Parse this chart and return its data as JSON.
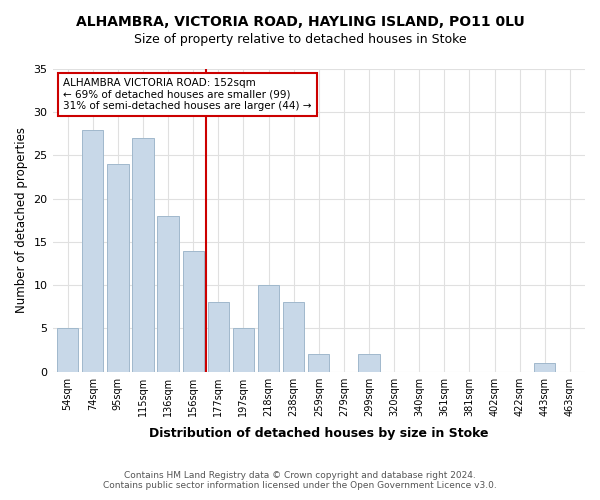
{
  "title": "ALHAMBRA, VICTORIA ROAD, HAYLING ISLAND, PO11 0LU",
  "subtitle": "Size of property relative to detached houses in Stoke",
  "xlabel": "Distribution of detached houses by size in Stoke",
  "ylabel": "Number of detached properties",
  "bar_color": "#c8d8e8",
  "bar_edge_color": "#a0b8cc",
  "categories": [
    "54sqm",
    "74sqm",
    "95sqm",
    "115sqm",
    "136sqm",
    "156sqm",
    "177sqm",
    "197sqm",
    "218sqm",
    "238sqm",
    "259sqm",
    "279sqm",
    "299sqm",
    "320sqm",
    "340sqm",
    "361sqm",
    "381sqm",
    "402sqm",
    "422sqm",
    "443sqm",
    "463sqm"
  ],
  "values": [
    5,
    28,
    24,
    27,
    18,
    14,
    8,
    5,
    10,
    8,
    2,
    0,
    2,
    0,
    0,
    0,
    0,
    0,
    0,
    1,
    0
  ],
  "ylim": [
    0,
    35
  ],
  "yticks": [
    0,
    5,
    10,
    15,
    20,
    25,
    30,
    35
  ],
  "vline_x": 5.5,
  "vline_color": "#cc0000",
  "annotation_title": "ALHAMBRA VICTORIA ROAD: 152sqm",
  "annotation_line1": "← 69% of detached houses are smaller (99)",
  "annotation_line2": "31% of semi-detached houses are larger (44) →",
  "footer1": "Contains HM Land Registry data © Crown copyright and database right 2024.",
  "footer2": "Contains public sector information licensed under the Open Government Licence v3.0.",
  "background_color": "#ffffff",
  "grid_color": "#e0e0e0"
}
